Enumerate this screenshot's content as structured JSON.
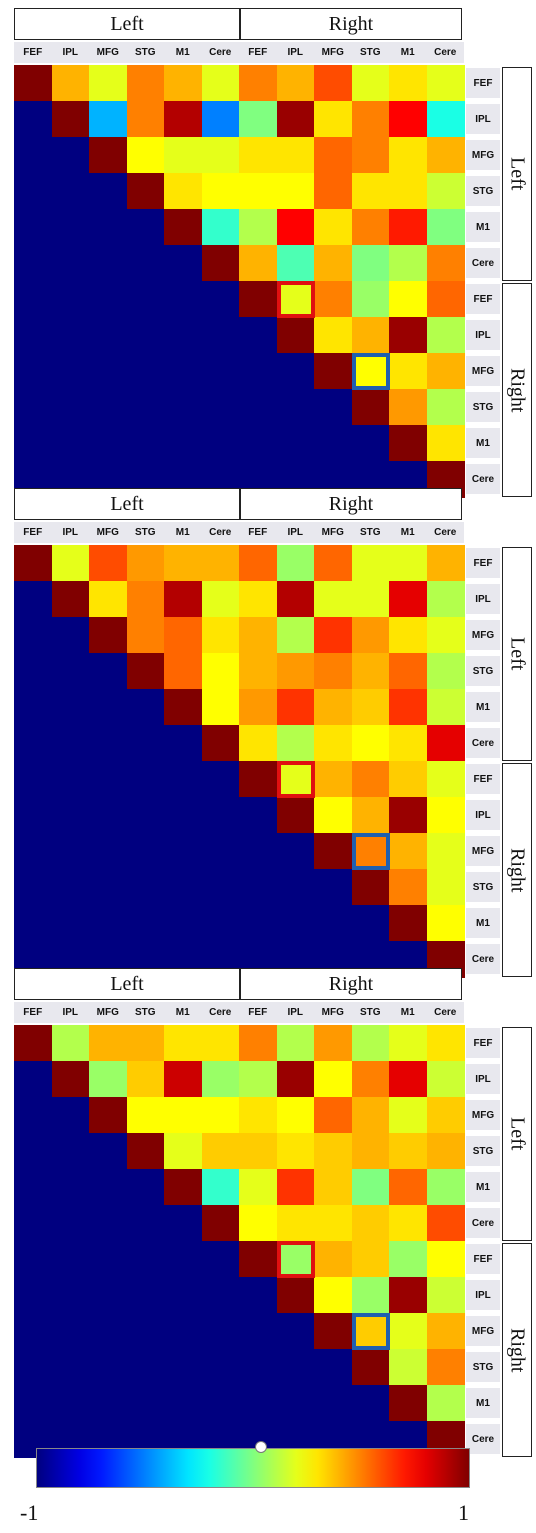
{
  "chart_data": [
    {
      "type": "heatmap",
      "top_groups": [
        "Left",
        "Right"
      ],
      "side_groups": [
        "Left",
        "Right"
      ],
      "col_labels": [
        "FEF",
        "IPL",
        "MFG",
        "STG",
        "M1",
        "Cere",
        "FEF",
        "IPL",
        "MFG",
        "STG",
        "M1",
        "Cere"
      ],
      "row_labels": [
        "FEF",
        "IPL",
        "MFG",
        "STG",
        "M1",
        "Cere",
        "FEF",
        "IPL",
        "MFG",
        "STG",
        "M1",
        "Cere"
      ],
      "value_range": [
        -1,
        1
      ],
      "highlights": [
        {
          "row": 6,
          "col": 7,
          "color": "#e01010"
        },
        {
          "row": 8,
          "col": 9,
          "color": "#1f5fb0"
        }
      ],
      "values": [
        [
          1.0,
          0.4,
          0.2,
          0.5,
          0.4,
          0.2,
          0.5,
          0.4,
          0.6,
          0.2,
          0.3,
          0.2
        ],
        [
          -1,
          1.0,
          -0.4,
          0.5,
          0.9,
          -0.5,
          0.0,
          0.95,
          0.3,
          0.5,
          0.75,
          -0.2
        ],
        [
          -1,
          -1,
          1.0,
          0.25,
          0.2,
          0.2,
          0.3,
          0.3,
          0.55,
          0.5,
          0.3,
          0.4
        ],
        [
          -1,
          -1,
          -1,
          1.0,
          0.3,
          0.25,
          0.25,
          0.25,
          0.55,
          0.3,
          0.3,
          0.15
        ],
        [
          -1,
          -1,
          -1,
          -1,
          1.0,
          -0.15,
          0.1,
          0.75,
          0.3,
          0.5,
          0.7,
          0.0
        ],
        [
          -1,
          -1,
          -1,
          -1,
          -1,
          1.0,
          0.4,
          -0.1,
          0.4,
          0.0,
          0.1,
          0.5
        ],
        [
          -1,
          -1,
          -1,
          -1,
          -1,
          -1,
          1.0,
          0.2,
          0.5,
          0.05,
          0.25,
          0.55
        ],
        [
          -1,
          -1,
          -1,
          -1,
          -1,
          -1,
          -1,
          1.0,
          0.3,
          0.4,
          0.95,
          0.1
        ],
        [
          -1,
          -1,
          -1,
          -1,
          -1,
          -1,
          -1,
          -1,
          1.0,
          0.25,
          0.3,
          0.4
        ],
        [
          -1,
          -1,
          -1,
          -1,
          -1,
          -1,
          -1,
          -1,
          -1,
          1.0,
          0.45,
          0.1
        ],
        [
          -1,
          -1,
          -1,
          -1,
          -1,
          -1,
          -1,
          -1,
          -1,
          -1,
          1.0,
          0.3
        ],
        [
          -1,
          -1,
          -1,
          -1,
          -1,
          -1,
          -1,
          -1,
          -1,
          -1,
          -1,
          1.0
        ]
      ]
    },
    {
      "type": "heatmap",
      "top_groups": [
        "Left",
        "Right"
      ],
      "side_groups": [
        "Left",
        "Right"
      ],
      "col_labels": [
        "FEF",
        "IPL",
        "MFG",
        "STG",
        "M1",
        "Cere",
        "FEF",
        "IPL",
        "MFG",
        "STG",
        "M1",
        "Cere"
      ],
      "row_labels": [
        "FEF",
        "IPL",
        "MFG",
        "STG",
        "M1",
        "Cere",
        "FEF",
        "IPL",
        "MFG",
        "STG",
        "M1",
        "Cere"
      ],
      "value_range": [
        -1,
        1
      ],
      "highlights": [
        {
          "row": 6,
          "col": 7,
          "color": "#e01010"
        },
        {
          "row": 8,
          "col": 9,
          "color": "#1f5fb0"
        }
      ],
      "values": [
        [
          1.0,
          0.2,
          0.6,
          0.45,
          0.4,
          0.4,
          0.55,
          0.05,
          0.55,
          0.2,
          0.2,
          0.4
        ],
        [
          -1,
          1.0,
          0.3,
          0.5,
          0.9,
          0.2,
          0.3,
          0.9,
          0.2,
          0.2,
          0.8,
          0.1
        ],
        [
          -1,
          -1,
          1.0,
          0.5,
          0.55,
          0.3,
          0.4,
          0.1,
          0.65,
          0.45,
          0.3,
          0.2
        ],
        [
          -1,
          -1,
          -1,
          1.0,
          0.55,
          0.25,
          0.4,
          0.45,
          0.5,
          0.4,
          0.55,
          0.1
        ],
        [
          -1,
          -1,
          -1,
          -1,
          1.0,
          0.25,
          0.45,
          0.65,
          0.4,
          0.35,
          0.65,
          0.15
        ],
        [
          -1,
          -1,
          -1,
          -1,
          -1,
          1.0,
          0.3,
          0.1,
          0.3,
          0.25,
          0.3,
          0.8
        ],
        [
          -1,
          -1,
          -1,
          -1,
          -1,
          -1,
          1.0,
          0.2,
          0.4,
          0.5,
          0.35,
          0.2
        ],
        [
          -1,
          -1,
          -1,
          -1,
          -1,
          -1,
          -1,
          1.0,
          0.25,
          0.4,
          0.95,
          0.25
        ],
        [
          -1,
          -1,
          -1,
          -1,
          -1,
          -1,
          -1,
          -1,
          1.0,
          0.5,
          0.4,
          0.2
        ],
        [
          -1,
          -1,
          -1,
          -1,
          -1,
          -1,
          -1,
          -1,
          -1,
          1.0,
          0.5,
          0.2
        ],
        [
          -1,
          -1,
          -1,
          -1,
          -1,
          -1,
          -1,
          -1,
          -1,
          -1,
          1.0,
          0.25
        ],
        [
          -1,
          -1,
          -1,
          -1,
          -1,
          -1,
          -1,
          -1,
          -1,
          -1,
          -1,
          1.0
        ]
      ]
    },
    {
      "type": "heatmap",
      "top_groups": [
        "Left",
        "Right"
      ],
      "side_groups": [
        "Left",
        "Right"
      ],
      "col_labels": [
        "FEF",
        "IPL",
        "MFG",
        "STG",
        "M1",
        "Cere",
        "FEF",
        "IPL",
        "MFG",
        "STG",
        "M1",
        "Cere"
      ],
      "row_labels": [
        "FEF",
        "IPL",
        "MFG",
        "STG",
        "M1",
        "Cere",
        "FEF",
        "IPL",
        "MFG",
        "STG",
        "M1",
        "Cere"
      ],
      "value_range": [
        -1,
        1
      ],
      "highlights": [
        {
          "row": 6,
          "col": 7,
          "color": "#e01010"
        },
        {
          "row": 8,
          "col": 9,
          "color": "#1f5fb0"
        }
      ],
      "values": [
        [
          1.0,
          0.1,
          0.4,
          0.4,
          0.3,
          0.3,
          0.5,
          0.1,
          0.45,
          0.1,
          0.2,
          0.3
        ],
        [
          -1,
          1.0,
          0.05,
          0.35,
          0.85,
          0.05,
          0.1,
          0.95,
          0.25,
          0.5,
          0.8,
          0.15
        ],
        [
          -1,
          -1,
          1.0,
          0.25,
          0.25,
          0.25,
          0.3,
          0.25,
          0.55,
          0.4,
          0.2,
          0.35
        ],
        [
          -1,
          -1,
          -1,
          1.0,
          0.2,
          0.35,
          0.35,
          0.3,
          0.35,
          0.4,
          0.35,
          0.4
        ],
        [
          -1,
          -1,
          -1,
          -1,
          1.0,
          -0.15,
          0.2,
          0.65,
          0.35,
          0.0,
          0.55,
          0.05
        ],
        [
          -1,
          -1,
          -1,
          -1,
          -1,
          1.0,
          0.25,
          0.3,
          0.3,
          0.35,
          0.3,
          0.6
        ],
        [
          -1,
          -1,
          -1,
          -1,
          -1,
          -1,
          1.0,
          0.05,
          0.4,
          0.35,
          0.05,
          0.25
        ],
        [
          -1,
          -1,
          -1,
          -1,
          -1,
          -1,
          -1,
          1.0,
          0.25,
          0.05,
          0.95,
          0.15
        ],
        [
          -1,
          -1,
          -1,
          -1,
          -1,
          -1,
          -1,
          -1,
          1.0,
          0.35,
          0.2,
          0.4
        ],
        [
          -1,
          -1,
          -1,
          -1,
          -1,
          -1,
          -1,
          -1,
          -1,
          1.0,
          0.15,
          0.5
        ],
        [
          -1,
          -1,
          -1,
          -1,
          -1,
          -1,
          -1,
          -1,
          -1,
          -1,
          1.0,
          0.1
        ],
        [
          -1,
          -1,
          -1,
          -1,
          -1,
          -1,
          -1,
          -1,
          -1,
          -1,
          -1,
          1.0
        ]
      ]
    }
  ],
  "colorbar": {
    "min_label": "-1",
    "max_label": "1",
    "colormap": "jet"
  }
}
